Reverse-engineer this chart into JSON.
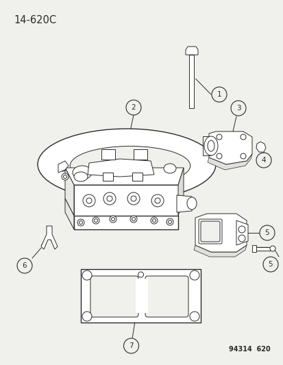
{
  "bg_color": "#f0f0ec",
  "line_color": "#2a2a2a",
  "title_text": "14-620C",
  "footer_text": "94314  620",
  "fig_w": 4.14,
  "fig_h": 5.33,
  "dpi": 100
}
